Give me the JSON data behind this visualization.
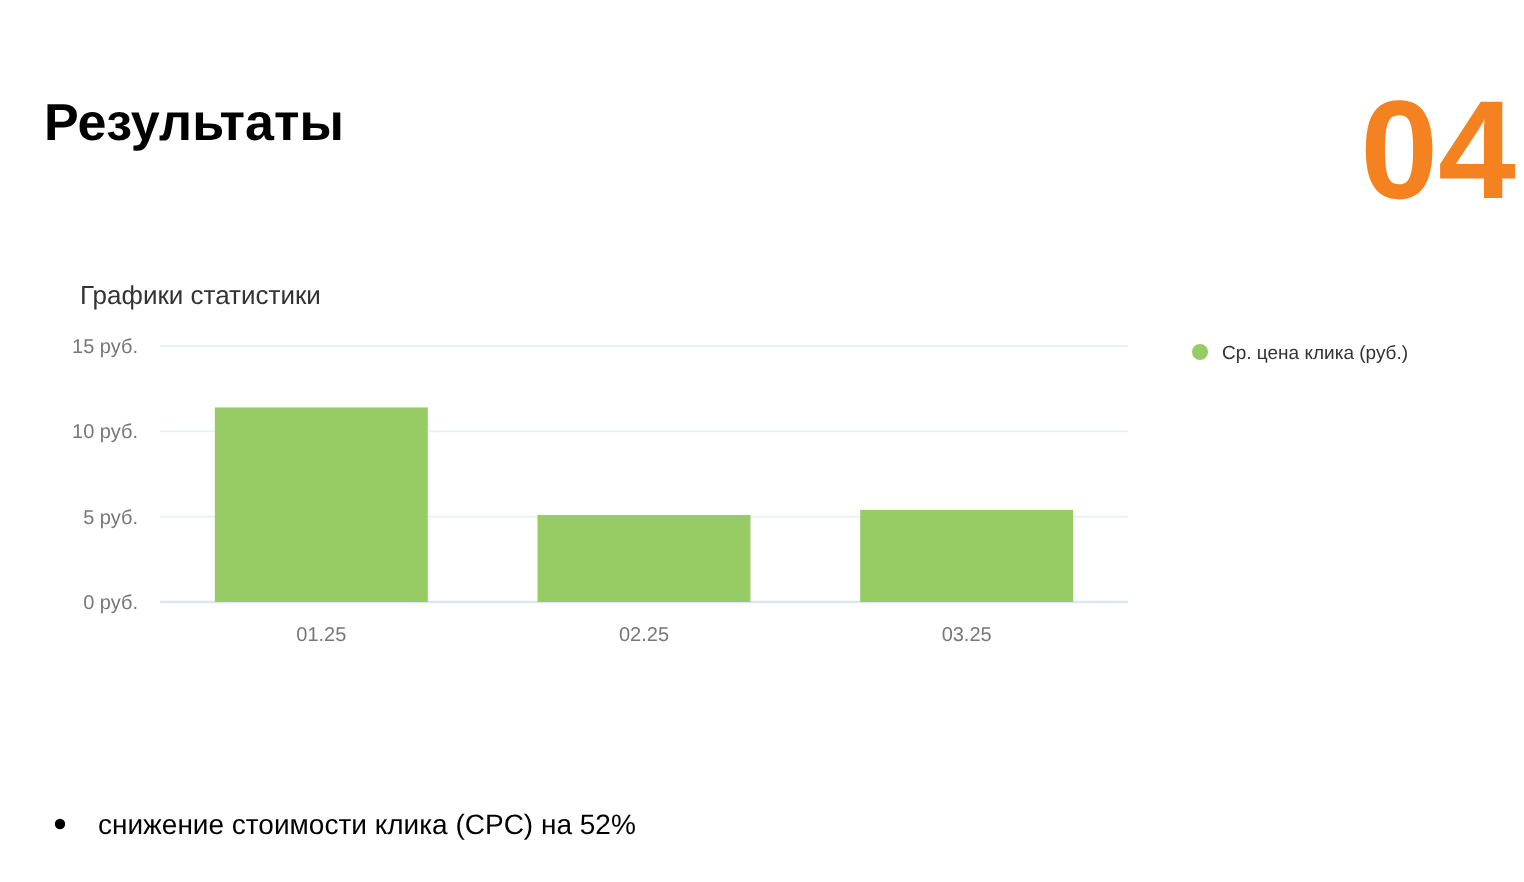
{
  "chart_data": {
    "type": "bar",
    "title": "Результаты",
    "subtitle": "Графики статистики",
    "categories": [
      "01.25",
      "02.25",
      "03.25"
    ],
    "series": [
      {
        "name": "Ср. цена клика (руб.)",
        "color": "#97cc64",
        "values": [
          11.4,
          5.1,
          5.4
        ]
      }
    ],
    "ylim": [
      0,
      15
    ],
    "yticks": [
      {
        "value": 0,
        "label": "0 руб."
      },
      {
        "value": 5,
        "label": "5 руб."
      },
      {
        "value": 10,
        "label": "10 руб."
      },
      {
        "value": 15,
        "label": "15 руб."
      }
    ],
    "grid": "y",
    "legend": "top right",
    "annotations": [
      "04",
      "снижение стоимости клика (CPC) на 52%"
    ]
  }
}
